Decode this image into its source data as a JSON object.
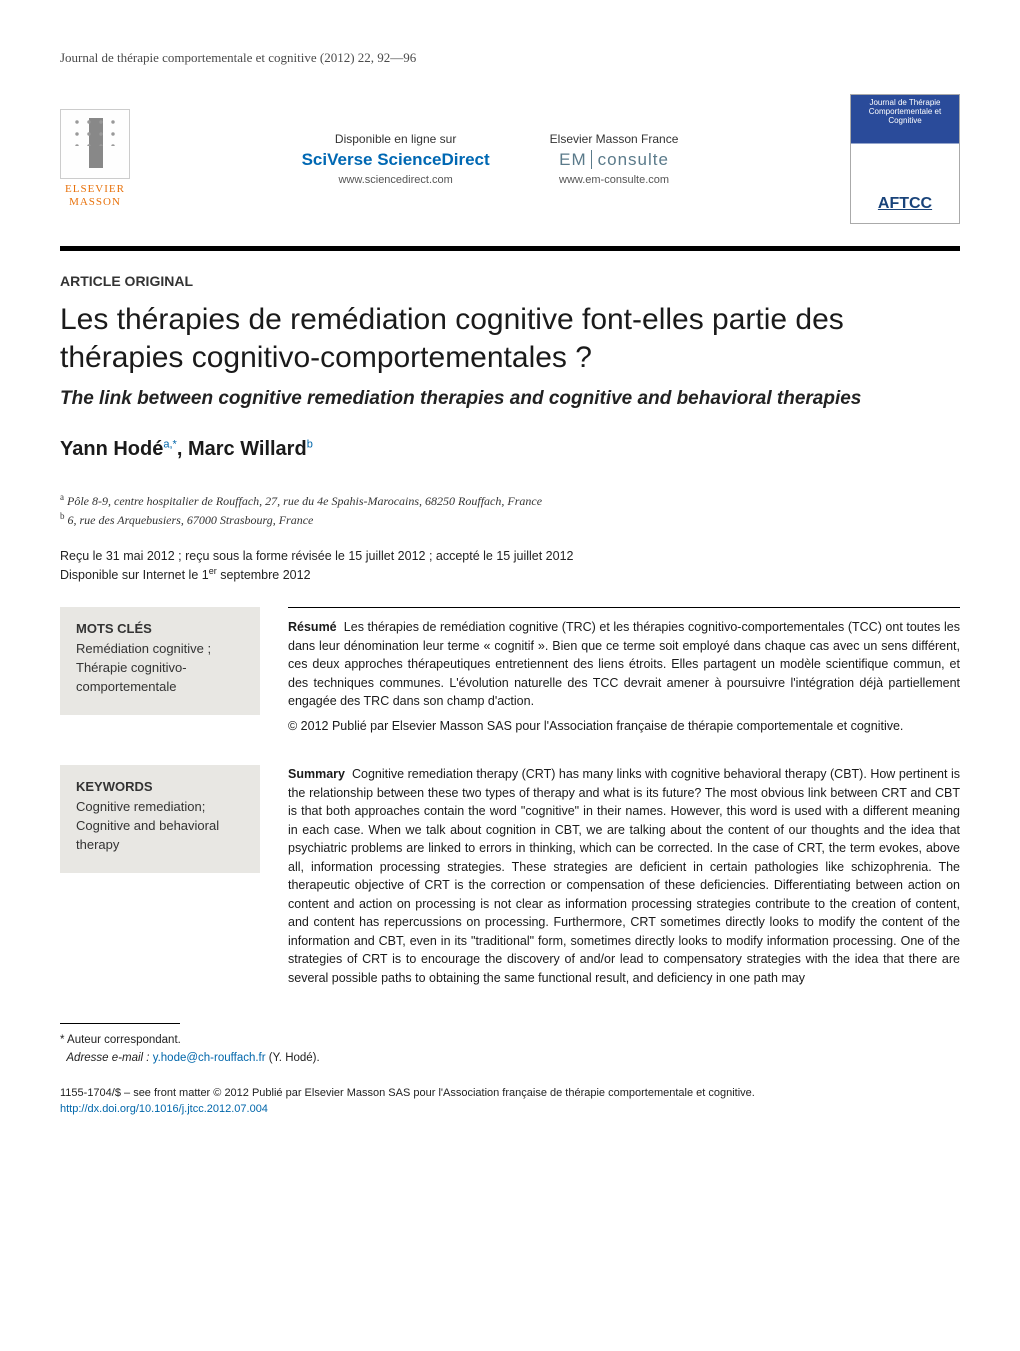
{
  "journal_ref": "Journal de thérapie comportementale et cognitive (2012) 22, 92—96",
  "header": {
    "publisher_name": "ELSEVIER\nMASSON",
    "left_block": {
      "available_label": "Disponible en ligne sur",
      "platform": "SciVerse ScienceDirect",
      "url": "www.sciencedirect.com"
    },
    "right_block": {
      "brand_label": "Elsevier Masson France",
      "platform_prefix": "EM",
      "platform_suffix": "consulte",
      "url": "www.em-consulte.com"
    },
    "cover": {
      "journal_title": "Journal de Thérapie Comportementale et Cognitive",
      "society": "AFTCC"
    }
  },
  "article_type": "ARTICLE ORIGINAL",
  "title_fr": "Les thérapies de remédiation cognitive font-elles partie des thérapies cognitivo-comportementales ?",
  "title_en": "The link between cognitive remediation therapies and cognitive and behavioral therapies",
  "authors_line": "Yann Hodé",
  "author1_sup": "a,*",
  "author2": ", Marc Willard",
  "author2_sup": "b",
  "affiliations": {
    "a": "Pôle 8-9, centre hospitalier de Rouffach, 27, rue du 4e Spahis-Marocains, 68250 Rouffach, France",
    "b": "6, rue des Arquebusiers, 67000 Strasbourg, France"
  },
  "dates_line1": "Reçu le 31 mai 2012 ; reçu sous la forme révisée le 15 juillet 2012 ; accepté le 15 juillet 2012",
  "dates_line2_pre": "Disponible sur Internet le 1",
  "dates_line2_sup": "er",
  "dates_line2_post": " septembre 2012",
  "mots_cles": {
    "head": "MOTS CLÉS",
    "items": "Remédiation cognitive ; Thérapie cognitivo-comportementale"
  },
  "keywords": {
    "head": "KEYWORDS",
    "items": "Cognitive remediation; Cognitive and behavioral therapy"
  },
  "resume": {
    "lead": "Résumé",
    "body": "Les thérapies de remédiation cognitive (TRC) et les thérapies cognitivo-comportementales (TCC) ont toutes les dans leur dénomination leur terme « cognitif ». Bien que ce terme soit employé dans chaque cas avec un sens différent, ces deux approches thérapeutiques entretiennent des liens étroits. Elles partagent un modèle scientifique commun, et des techniques communes. L'évolution naturelle des TCC devrait amener à poursuivre l'intégration déjà partiellement engagée des TRC dans son champ d'action.",
    "copyright": "© 2012 Publié par Elsevier Masson SAS pour l'Association française de thérapie comportementale et cognitive."
  },
  "summary": {
    "lead": "Summary",
    "body": "Cognitive remediation therapy (CRT) has many links with cognitive behavioral therapy (CBT). How pertinent is the relationship between these two types of therapy and what is its future? The most obvious link between CRT and CBT is that both approaches contain the word \"cognitive\" in their names. However, this word is used with a different meaning in each case. When we talk about cognition in CBT, we are talking about the content of our thoughts and the idea that psychiatric problems are linked to errors in thinking, which can be corrected. In the case of CRT, the term evokes, above all, information processing strategies. These strategies are deficient in certain pathologies like schizophrenia. The therapeutic objective of CRT is the correction or compensation of these deficiencies. Differentiating between action on content and action on processing is not clear as information processing strategies contribute to the creation of content, and content has repercussions on processing. Furthermore, CRT sometimes directly looks to modify the content of the information and CBT, even in its \"traditional\" form, sometimes directly looks to modify information processing. One of the strategies of CRT is to encourage the discovery of and/or lead to compensatory strategies with the idea that there are several possible paths to obtaining the same functional result, and deficiency in one path may"
  },
  "footnote": {
    "corr": "Auteur correspondant.",
    "email_label": "Adresse e-mail :",
    "email": "y.hode@ch-rouffach.fr",
    "email_suffix": "(Y. Hodé)."
  },
  "copyright_block": {
    "line1": "1155-1704/$ – see front matter © 2012 Publié par Elsevier Masson SAS pour l'Association française de thérapie comportementale et cognitive.",
    "doi": "http://dx.doi.org/10.1016/j.jtcc.2012.07.004"
  },
  "colors": {
    "link": "#0066aa",
    "rule": "#000000",
    "kw_bg": "#e8e7e3",
    "elsevier_orange": "#e8720c",
    "sciverse_blue": "#0068b3",
    "cover_blue": "#2a4b9a"
  }
}
